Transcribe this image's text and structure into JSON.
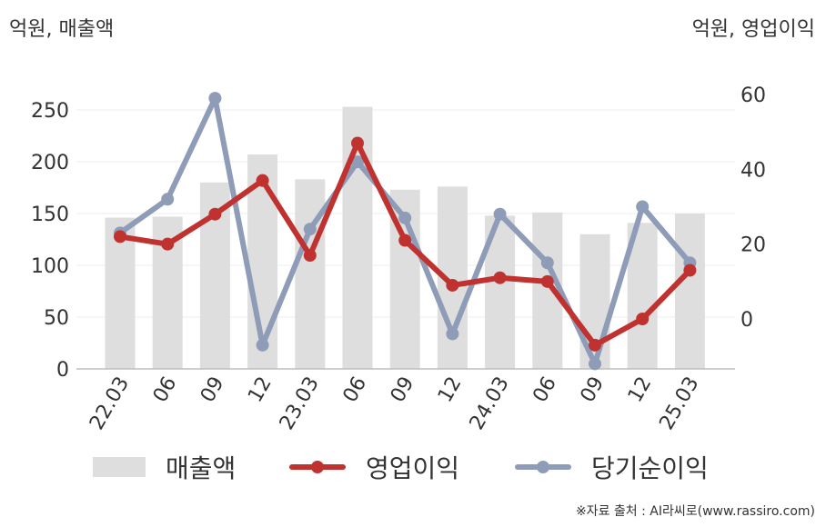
{
  "units": {
    "left": "억원, 매출액",
    "right": "억원, 영업이익"
  },
  "legend": {
    "revenue": "매출액",
    "operating": "영업이익",
    "net": "당기순이익"
  },
  "source": "※자료 출처 : AI라씨로(www.rassiro.com)",
  "colors": {
    "bar": "#dedede",
    "operating": "#c0322f",
    "net": "#8e9cb8",
    "grid": "#ececec",
    "axis": "#bdbdbd"
  },
  "chart_data": {
    "type": "bar+line",
    "categories": [
      "22.03",
      "06",
      "09",
      "12",
      "23.03",
      "06",
      "09",
      "12",
      "24.03",
      "06",
      "09",
      "12",
      "25.03"
    ],
    "left_axis": {
      "ylim": [
        0,
        275
      ],
      "ticks": [
        0,
        50,
        100,
        150,
        200,
        250
      ]
    },
    "right_axis": {
      "ylim": [
        -13,
        63
      ],
      "ticks": [
        0,
        20,
        40,
        60
      ]
    },
    "bars": {
      "name": "매출액",
      "axis": "left",
      "values": [
        146,
        147,
        180,
        207,
        183,
        253,
        173,
        176,
        148,
        151,
        130,
        141,
        150
      ]
    },
    "series": [
      {
        "name": "영업이익",
        "axis": "right",
        "values": [
          22,
          20,
          28,
          37,
          17,
          47,
          21,
          9,
          11,
          10,
          -7,
          0,
          13
        ]
      },
      {
        "name": "당기순이익",
        "axis": "right",
        "values": [
          23,
          32,
          59,
          -7,
          24,
          42,
          27,
          -4,
          28,
          15,
          -12,
          30,
          15
        ]
      }
    ]
  }
}
